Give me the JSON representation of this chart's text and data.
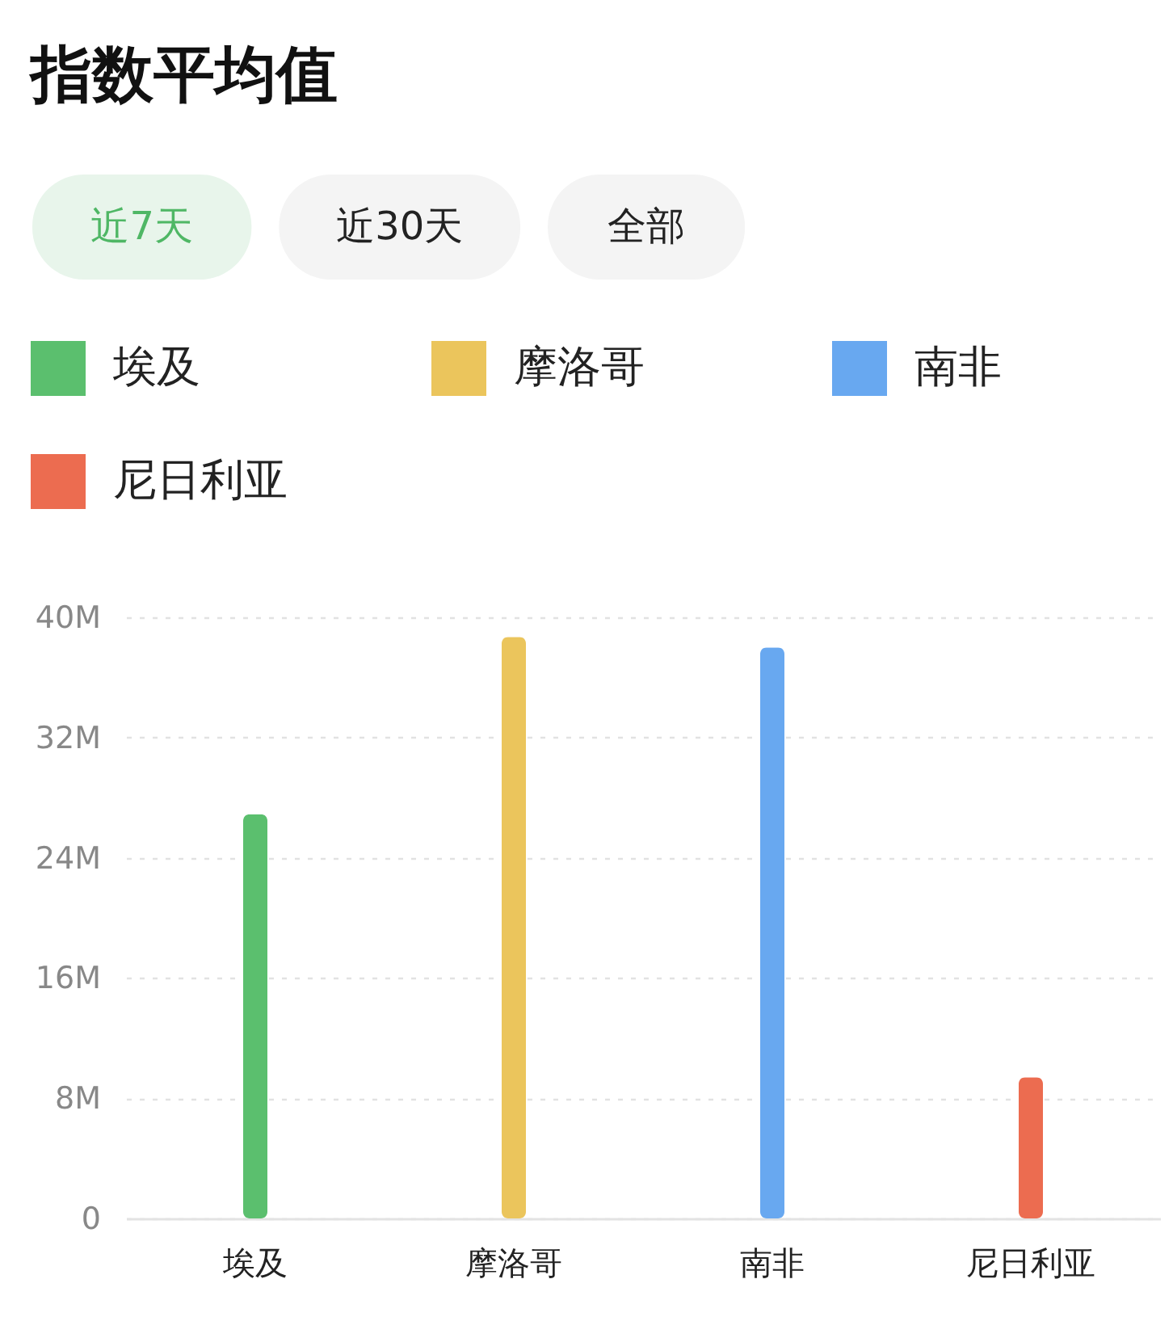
{
  "chart_data": {
    "type": "bar",
    "title": "指数平均值",
    "annotations": [
      "近7天",
      "近30天",
      "全部"
    ],
    "categories": [
      "埃及",
      "摩洛哥",
      "南非",
      "尼日利亚"
    ],
    "series": [
      {
        "name": "埃及",
        "color": "#5bbf6e",
        "values": [
          26.9,
          null,
          null,
          null
        ]
      },
      {
        "name": "摩洛哥",
        "color": "#ebc55c",
        "values": [
          null,
          38.7,
          null,
          null
        ]
      },
      {
        "name": "南非",
        "color": "#68a8f0",
        "values": [
          null,
          null,
          38.0,
          null
        ]
      },
      {
        "name": "尼日利亚",
        "color": "#ec6c50",
        "values": [
          null,
          null,
          null,
          9.4
        ]
      }
    ],
    "ylim": [
      0,
      40
    ],
    "yticks": [
      0,
      {
        "value": 8,
        "label": "8M"
      },
      {
        "value": 16,
        "label": "16M"
      },
      {
        "value": 24,
        "label": "24M"
      },
      {
        "value": 32,
        "label": "32M"
      },
      {
        "value": 40,
        "label": "40M"
      }
    ],
    "grid": "y",
    "legend": "top"
  }
}
